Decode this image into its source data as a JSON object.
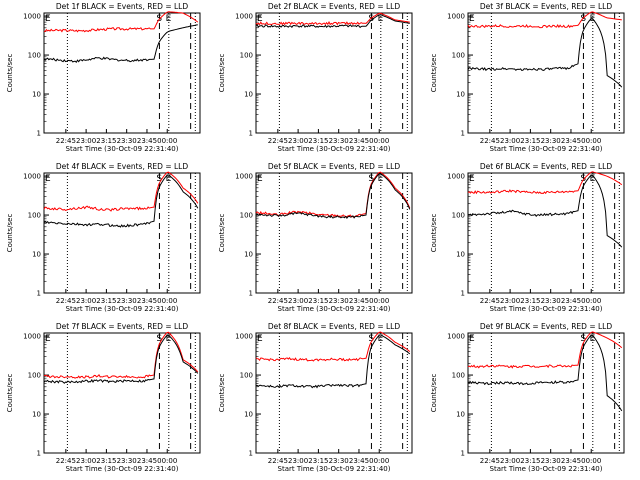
{
  "chart_data": [
    {
      "type": "line",
      "title": "Det 1f BLACK = Events, RED = LLD",
      "ylabel": "Counts/sec",
      "xlabel": "Start Time (30-Oct-09 22:31:40)",
      "x_tick_labels": [
        "22:45",
        "23:00",
        "23:15",
        "23:30",
        "23:45",
        "00:00"
      ],
      "y_tick_labels": [
        "1",
        "10",
        "100",
        "1000"
      ],
      "ylim": [
        1,
        1200
      ],
      "annotations": [
        "S",
        "E"
      ],
      "log_scale_y": true,
      "series": [
        {
          "name": "",
          "color": "#ff0000",
          "values": [
            420,
            430,
            430,
            420,
            430,
            450,
            470,
            470,
            470,
            470,
            470,
            1300,
            1200,
            700
          ]
        },
        {
          "name": "",
          "color": "#000000",
          "values": [
            80,
            76,
            72,
            70,
            76,
            84,
            78,
            74,
            72,
            76,
            78,
            400,
            500,
            600
          ]
        }
      ]
    },
    {
      "type": "line",
      "title": "Det 2f BLACK = Events, RED = LLD",
      "ylabel": "Counts/sec",
      "xlabel": "Start Time (30-Oct-09 22:31:40)",
      "x_tick_labels": [
        "22:45",
        "23:00",
        "23:15",
        "23:30",
        "23:45",
        "00:00"
      ],
      "y_tick_labels": [
        "1",
        "10",
        "100",
        "1000"
      ],
      "ylim": [
        1,
        1200
      ],
      "annotations": [
        "S",
        "E"
      ],
      "log_scale_y": true,
      "series": [
        {
          "name": "",
          "color": "#ff0000",
          "values": [
            650,
            650,
            640,
            660,
            650,
            640,
            650,
            660,
            650,
            660,
            650,
            1200,
            800,
            700
          ]
        },
        {
          "name": "",
          "color": "#000000",
          "values": [
            550,
            560,
            540,
            550,
            560,
            550,
            540,
            550,
            560,
            550,
            550,
            1100,
            750,
            650
          ]
        }
      ]
    },
    {
      "type": "line",
      "title": "Det 3f BLACK = Events, RED = LLD",
      "ylabel": "Counts/sec",
      "xlabel": "Start Time (30-Oct-09 22:31:40)",
      "x_tick_labels": [
        "22:45",
        "23:00",
        "23:15",
        "23:30",
        "23:45",
        "00:00"
      ],
      "y_tick_labels": [
        "1",
        "10",
        "100",
        "1000"
      ],
      "ylim": [
        1,
        1200
      ],
      "annotations": [
        "S",
        "E"
      ],
      "log_scale_y": true,
      "series": [
        {
          "name": "",
          "color": "#ff0000",
          "values": [
            560,
            540,
            550,
            560,
            540,
            560,
            550,
            540,
            560,
            540,
            580,
            1300,
            900,
            800
          ]
        },
        {
          "name": "",
          "color": "#000000",
          "values": [
            45,
            44,
            43,
            45,
            44,
            42,
            44,
            43,
            45,
            46,
            60,
            900,
            30,
            15
          ]
        }
      ]
    },
    {
      "type": "line",
      "title": "Det 4f BLACK = Events, RED = LLD",
      "ylabel": "Counts/sec",
      "xlabel": "Start Time (30-Oct-09 22:31:40)",
      "x_tick_labels": [
        "22:45",
        "23:00",
        "23:15",
        "23:30",
        "23:45",
        "00:00"
      ],
      "y_tick_labels": [
        "1",
        "10",
        "100",
        "1000"
      ],
      "ylim": [
        1,
        1200
      ],
      "annotations": [
        "S",
        "E"
      ],
      "log_scale_y": true,
      "series": [
        {
          "name": "",
          "color": "#ff0000",
          "values": [
            150,
            145,
            140,
            150,
            160,
            140,
            135,
            145,
            150,
            145,
            160,
            1300,
            500,
            200
          ]
        },
        {
          "name": "",
          "color": "#000000",
          "values": [
            65,
            62,
            60,
            58,
            56,
            58,
            55,
            52,
            55,
            58,
            70,
            1100,
            400,
            150
          ]
        }
      ]
    },
    {
      "type": "line",
      "title": "Det 5f BLACK = Events, RED = LLD",
      "ylabel": "Counts/sec",
      "xlabel": "Start Time (30-Oct-09 22:31:40)",
      "x_tick_labels": [
        "22:45",
        "23:00",
        "23:15",
        "23:30",
        "23:45",
        "00:00"
      ],
      "y_tick_labels": [
        "1",
        "10",
        "100",
        "1000"
      ],
      "ylim": [
        1,
        1200
      ],
      "annotations": [
        "S",
        "E"
      ],
      "log_scale_y": true,
      "series": [
        {
          "name": "",
          "color": "#ff0000",
          "values": [
            115,
            110,
            100,
            115,
            120,
            110,
            100,
            100,
            95,
            95,
            110,
            1300,
            500,
            150
          ]
        },
        {
          "name": "",
          "color": "#000000",
          "values": [
            105,
            100,
            95,
            105,
            110,
            100,
            92,
            90,
            88,
            90,
            100,
            1200,
            450,
            140
          ]
        }
      ]
    },
    {
      "type": "line",
      "title": "Det 6f BLACK = Events, RED = LLD",
      "ylabel": "Counts/sec",
      "xlabel": "Start Time (30-Oct-09 22:31:40)",
      "x_tick_labels": [
        "22:45",
        "23:00",
        "23:15",
        "23:30",
        "23:45",
        "00:00"
      ],
      "y_tick_labels": [
        "1",
        "10",
        "100",
        "1000"
      ],
      "ylim": [
        1,
        1200
      ],
      "annotations": [
        "S",
        "E"
      ],
      "log_scale_y": true,
      "series": [
        {
          "name": "",
          "color": "#ff0000",
          "values": [
            380,
            390,
            380,
            400,
            420,
            390,
            380,
            380,
            390,
            400,
            420,
            1300,
            1000,
            600
          ]
        },
        {
          "name": "",
          "color": "#000000",
          "values": [
            100,
            105,
            110,
            115,
            125,
            110,
            100,
            102,
            105,
            110,
            130,
            1100,
            30,
            15
          ]
        }
      ]
    },
    {
      "type": "line",
      "title": "Det 7f BLACK = Events, RED = LLD",
      "ylabel": "Counts/sec",
      "xlabel": "Start Time (30-Oct-09 22:31:40)",
      "x_tick_labels": [
        "22:45",
        "23:00",
        "23:15",
        "23:30",
        "23:45",
        "00:00"
      ],
      "y_tick_labels": [
        "1",
        "10",
        "100",
        "1000"
      ],
      "ylim": [
        1,
        1200
      ],
      "annotations": [
        "S",
        "E"
      ],
      "log_scale_y": true,
      "series": [
        {
          "name": "",
          "color": "#ff0000",
          "values": [
            95,
            90,
            92,
            88,
            90,
            95,
            90,
            92,
            88,
            90,
            100,
            1300,
            250,
            120
          ]
        },
        {
          "name": "",
          "color": "#000000",
          "values": [
            70,
            68,
            66,
            68,
            70,
            72,
            68,
            70,
            72,
            70,
            80,
            1100,
            220,
            110
          ]
        }
      ]
    },
    {
      "type": "line",
      "title": "Det 8f BLACK = Events, RED = LLD",
      "ylabel": "Counts/sec",
      "xlabel": "Start Time (30-Oct-09 22:31:40)",
      "x_tick_labels": [
        "22:45",
        "23:00",
        "23:15",
        "23:30",
        "23:45",
        "00:00"
      ],
      "y_tick_labels": [
        "1",
        "10",
        "100",
        "1000"
      ],
      "ylim": [
        1,
        1200
      ],
      "annotations": [
        "S",
        "E"
      ],
      "log_scale_y": true,
      "series": [
        {
          "name": "",
          "color": "#ff0000",
          "values": [
            260,
            250,
            250,
            260,
            250,
            245,
            250,
            255,
            250,
            250,
            270,
            1300,
            700,
            400
          ]
        },
        {
          "name": "",
          "color": "#000000",
          "values": [
            55,
            52,
            50,
            54,
            52,
            50,
            52,
            55,
            54,
            52,
            60,
            1100,
            600,
            350
          ]
        }
      ]
    },
    {
      "type": "line",
      "title": "Det 9f BLACK = Events, RED = LLD",
      "ylabel": "Counts/sec",
      "xlabel": "Start Time (30-Oct-09 22:31:40)",
      "x_tick_labels": [
        "22:45",
        "23:00",
        "23:15",
        "23:30",
        "23:45",
        "00:00"
      ],
      "y_tick_labels": [
        "1",
        "10",
        "100",
        "1000"
      ],
      "ylim": [
        1,
        1200
      ],
      "annotations": [
        "S",
        "E"
      ],
      "log_scale_y": true,
      "series": [
        {
          "name": "",
          "color": "#ff0000",
          "values": [
            170,
            165,
            175,
            170,
            165,
            170,
            168,
            170,
            172,
            170,
            180,
            1300,
            900,
            500
          ]
        },
        {
          "name": "",
          "color": "#000000",
          "values": [
            65,
            62,
            60,
            64,
            62,
            60,
            62,
            64,
            66,
            65,
            75,
            1100,
            30,
            12
          ]
        }
      ]
    }
  ]
}
